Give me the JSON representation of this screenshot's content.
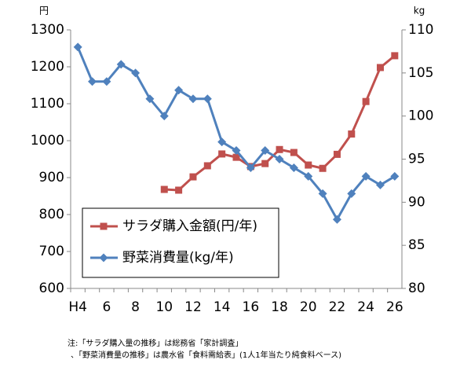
{
  "chart_data": {
    "type": "line",
    "ylabel": "円",
    "y2label": "kg",
    "categories": [
      "H4",
      null,
      "6",
      null,
      "8",
      null,
      "10",
      null,
      "12",
      null,
      "14",
      null,
      "16",
      null,
      "18",
      null,
      "20",
      null,
      "22",
      null,
      "24",
      null,
      "26"
    ],
    "series": [
      {
        "name": "サラダ購入金額(円/年)",
        "color": "#c0504d",
        "marker": "square",
        "values": [
          null,
          null,
          null,
          null,
          null,
          null,
          868,
          866,
          902,
          932,
          964,
          955,
          930,
          938,
          976,
          968,
          934,
          925,
          963,
          1018,
          1106,
          1198,
          1230
        ]
      },
      {
        "name": "野菜消費量(kg/年)",
        "color": "#4f81bd",
        "marker": "diamond",
        "axis": "y2",
        "values": [
          108,
          104,
          104,
          106,
          105,
          102,
          100,
          103,
          102,
          102,
          97,
          96,
          94,
          96,
          95,
          94,
          93,
          91,
          88,
          91,
          93,
          92,
          93
        ]
      }
    ],
    "ylim": [
      600,
      1300
    ],
    "yticks": [
      600,
      700,
      800,
      900,
      1000,
      1100,
      1200,
      1300
    ],
    "y2lim": [
      80,
      110
    ],
    "y2ticks": [
      80,
      85,
      90,
      95,
      100,
      105,
      110
    ],
    "grid": false,
    "legend": "lower left",
    "notes": [
      "注:「サラダ購入量の推移」は総務省「家計調査」",
      "、「野菜消費量の推移」は農水省「食料需給表」(1人1年当たり純食料ベース)"
    ]
  }
}
